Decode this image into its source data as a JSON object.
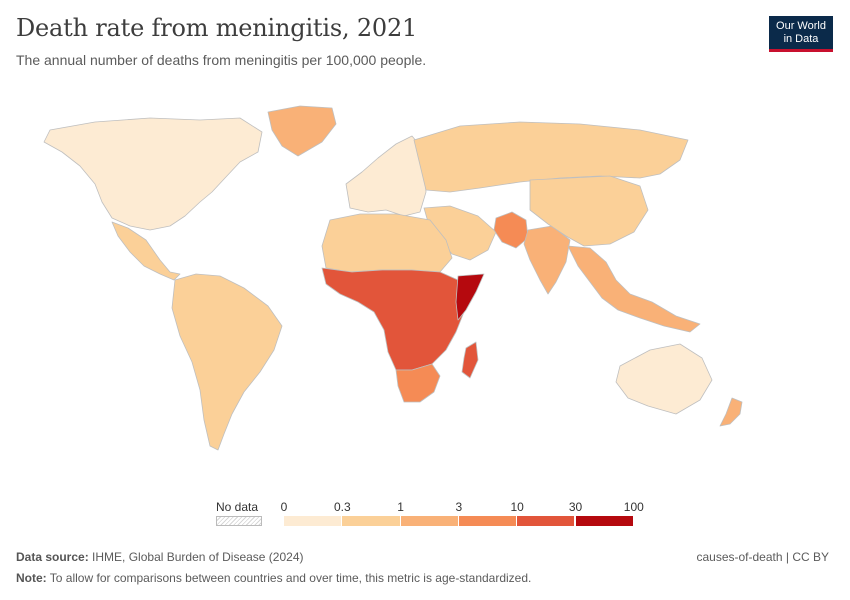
{
  "header": {
    "title": "Death rate from meningitis, 2021",
    "subtitle": "The annual number of deaths from meningitis per 100,000 people."
  },
  "logo": {
    "line1": "Our World",
    "line2": "in Data"
  },
  "legend": {
    "no_data_label": "No data",
    "ticks": [
      "0",
      "0.3",
      "1",
      "3",
      "10",
      "30",
      "100"
    ],
    "colors": [
      "#fdebd3",
      "#fbd098",
      "#f9b177",
      "#f58b55",
      "#e2553a",
      "#b5090e"
    ]
  },
  "map": {
    "colors": {
      "very_low": "#fdebd3",
      "low": "#fbd098",
      "medium": "#f9b177",
      "high": "#f58b55",
      "very_high": "#e2553a",
      "highest": "#b5090e",
      "border": "#bfbfbf"
    },
    "regions": [
      {
        "name": "North America",
        "level": "very_low"
      },
      {
        "name": "Greenland",
        "level": "medium"
      },
      {
        "name": "Central America",
        "level": "low"
      },
      {
        "name": "South America",
        "level": "low"
      },
      {
        "name": "Europe",
        "level": "very_low"
      },
      {
        "name": "Russia",
        "level": "low"
      },
      {
        "name": "Middle East",
        "level": "low"
      },
      {
        "name": "Pakistan",
        "level": "high"
      },
      {
        "name": "India",
        "level": "medium"
      },
      {
        "name": "China",
        "level": "low"
      },
      {
        "name": "Southeast Asia",
        "level": "medium"
      },
      {
        "name": "North Africa",
        "level": "low"
      },
      {
        "name": "Sub-Saharan Africa",
        "level": "very_high"
      },
      {
        "name": "Somalia",
        "level": "highest"
      },
      {
        "name": "Southern Africa",
        "level": "high"
      },
      {
        "name": "Madagascar",
        "level": "very_high"
      },
      {
        "name": "Australia",
        "level": "very_low"
      },
      {
        "name": "New Zealand",
        "level": "medium"
      }
    ]
  },
  "footer": {
    "source_label": "Data source:",
    "source_text": "IHME, Global Burden of Disease (2024)",
    "note_label": "Note:",
    "note_text": "To allow for comparisons between countries and over time, this metric is age-standardized.",
    "right_text": "causes-of-death | CC BY"
  }
}
